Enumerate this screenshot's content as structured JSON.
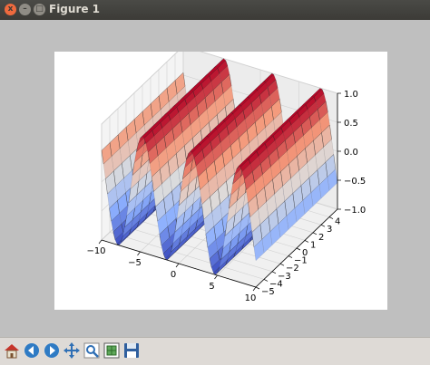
{
  "window": {
    "title": "Figure 1"
  },
  "titlebar_buttons": {
    "close": "x",
    "minimize": "–",
    "maximize": "□"
  },
  "toolbar": {
    "icons": [
      "home-icon",
      "back-icon",
      "forward-icon",
      "pan-icon",
      "zoom-icon",
      "configure-subplots-icon",
      "save-icon"
    ]
  },
  "chart_data": {
    "type": "surface",
    "surface": "z = sin(x)",
    "x_ticks": [
      "−10",
      "−5",
      "0",
      "5",
      "10"
    ],
    "y_ticks": [
      "−5",
      "−4",
      "−3",
      "−2",
      "−1",
      "0",
      "1",
      "2",
      "3",
      "4"
    ],
    "z_ticks": [
      "1.0",
      "0.5",
      "0.0",
      "−0.5",
      "−1.0"
    ],
    "xlim": [
      -10,
      10
    ],
    "ylim": [
      -5,
      5
    ],
    "zlim": [
      -1,
      1
    ],
    "colormap": "coolwarm",
    "colors": {
      "high": "#b40426",
      "mid": "#dddcdc",
      "low": "#3b4cc0"
    }
  }
}
